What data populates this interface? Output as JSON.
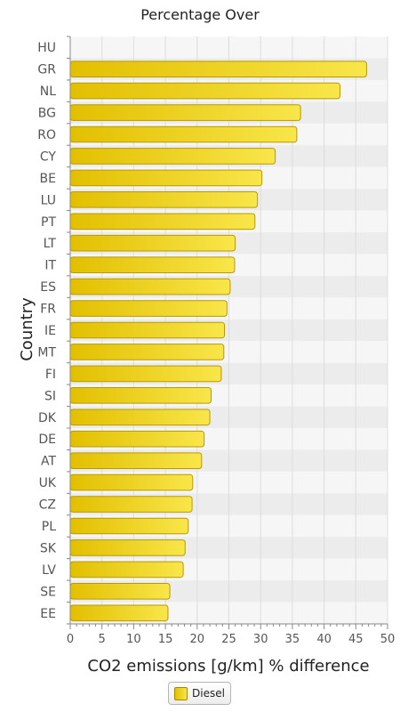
{
  "chart_data": {
    "type": "bar",
    "orientation": "horizontal",
    "title": "Percentage Over",
    "xlabel": "CO2 emissions [g/km] % difference",
    "ylabel": "Country",
    "xlim": [
      0,
      50
    ],
    "x_ticks": [
      0,
      5,
      10,
      15,
      20,
      25,
      30,
      35,
      40,
      45,
      50
    ],
    "grid": true,
    "legend_position": "bottom-center",
    "categories": [
      "HU",
      "GR",
      "NL",
      "BG",
      "RO",
      "CY",
      "BE",
      "LU",
      "PT",
      "LT",
      "IT",
      "ES",
      "FR",
      "IE",
      "MT",
      "FI",
      "SI",
      "DK",
      "DE",
      "AT",
      "UK",
      "CZ",
      "PL",
      "SK",
      "LV",
      "SE",
      "EE"
    ],
    "series": [
      {
        "name": "Diesel",
        "color": "#F2D520",
        "values": [
          0,
          46.7,
          42.5,
          36.3,
          35.7,
          32.3,
          30.2,
          29.5,
          29.1,
          26.0,
          25.9,
          25.2,
          24.7,
          24.3,
          24.2,
          23.8,
          22.2,
          22.0,
          21.1,
          20.7,
          19.3,
          19.2,
          18.6,
          18.1,
          17.8,
          15.7,
          15.4
        ]
      }
    ]
  }
}
